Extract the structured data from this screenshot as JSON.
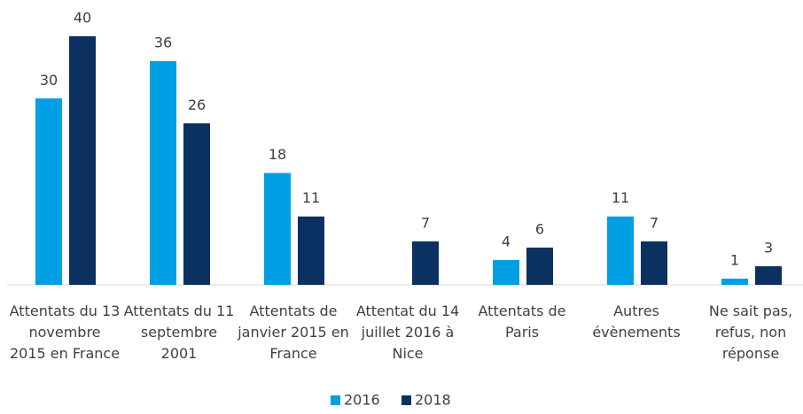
{
  "chart_data": {
    "type": "bar",
    "categories": [
      "Attentats du 13 novembre 2015 en France",
      "Attentats du 11 septembre 2001",
      "Attentats de janvier 2015 en France",
      "Attentat du 14 juillet 2016 à Nice",
      "Attentats de Paris",
      "Autres évènements",
      "Ne sait pas, refus, non réponse"
    ],
    "series": [
      {
        "name": "2016",
        "color": "#009fe3",
        "values": [
          30,
          36,
          18,
          null,
          4,
          11,
          1
        ]
      },
      {
        "name": "2018",
        "color": "#0b3160",
        "values": [
          40,
          26,
          11,
          7,
          6,
          7,
          3
        ]
      }
    ],
    "ylim": [
      0,
      40
    ],
    "legend": "bottom"
  }
}
